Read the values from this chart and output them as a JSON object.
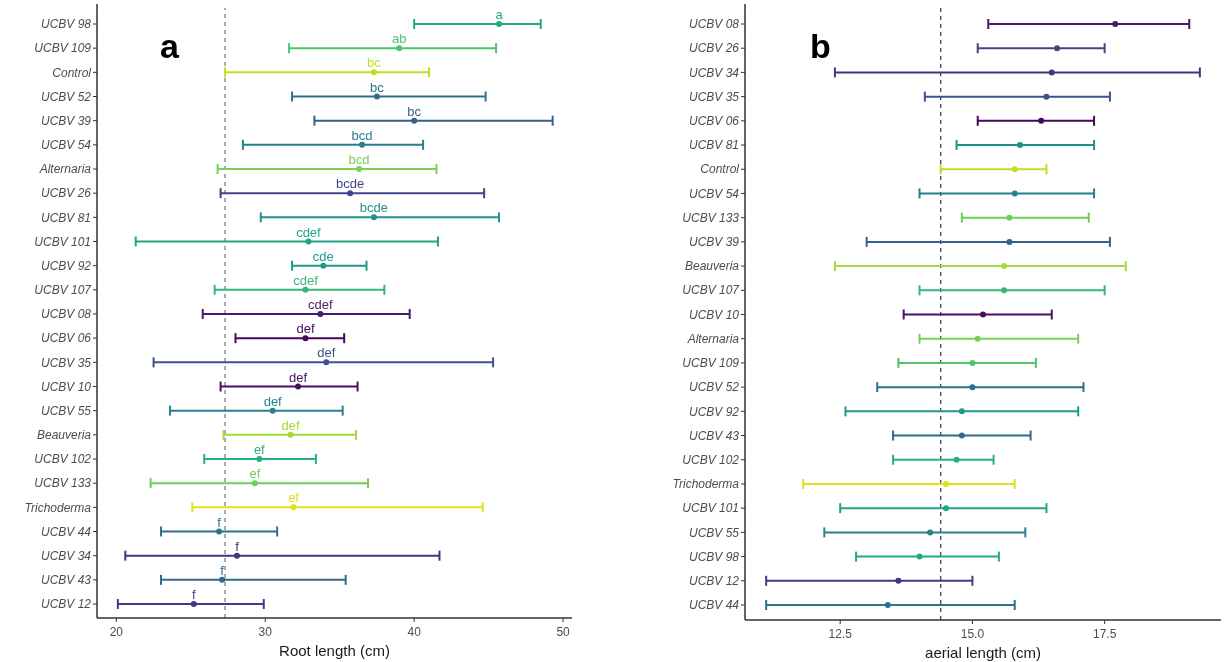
{
  "chart_data": [
    {
      "type": "scatter",
      "orientation": "horizontal",
      "marker": "circle",
      "xlabel": "Root length (cm)",
      "annotations": [
        "a"
      ],
      "categories": [
        "UCBV 98",
        "UCBV 109",
        "Control",
        "UCBV 52",
        "UCBV 39",
        "UCBV 54",
        "Alternaria",
        "UCBV 26",
        "UCBV 81",
        "UCBV 101",
        "UCBV 92",
        "UCBV 107",
        "UCBV 08",
        "UCBV 06",
        "UCBV 35",
        "UCBV 10",
        "UCBV 55",
        "Beauveria",
        "UCBV 102",
        "UCBV 133",
        "Trichoderma",
        "UCBV 44",
        "UCBV 34",
        "UCBV 43",
        "UCBV 12"
      ],
      "values": [
        45.7,
        39.0,
        37.3,
        37.5,
        40.0,
        36.5,
        36.3,
        35.7,
        37.3,
        32.9,
        33.9,
        32.7,
        33.7,
        32.7,
        34.1,
        32.2,
        30.5,
        31.7,
        29.6,
        29.3,
        31.9,
        26.9,
        28.1,
        27.1,
        25.2
      ],
      "errors": [
        [
          40.0,
          48.5
        ],
        [
          31.6,
          45.5
        ],
        [
          27.3,
          41.0
        ],
        [
          31.8,
          44.8
        ],
        [
          33.3,
          49.3
        ],
        [
          28.5,
          40.6
        ],
        [
          26.8,
          41.5
        ],
        [
          27.0,
          44.7
        ],
        [
          29.7,
          45.7
        ],
        [
          21.3,
          41.6
        ],
        [
          31.8,
          36.8
        ],
        [
          26.6,
          38.0
        ],
        [
          25.8,
          39.7
        ],
        [
          28.0,
          35.3
        ],
        [
          22.5,
          45.3
        ],
        [
          27.0,
          36.2
        ],
        [
          23.6,
          35.2
        ],
        [
          27.2,
          36.1
        ],
        [
          25.9,
          33.4
        ],
        [
          22.3,
          36.9
        ],
        [
          25.1,
          44.6
        ],
        [
          23.0,
          30.8
        ],
        [
          20.6,
          41.7
        ],
        [
          23.0,
          35.4
        ],
        [
          20.1,
          29.9
        ]
      ],
      "value_labels": [
        "a",
        "ab",
        "bc",
        "bc",
        "bc",
        "bcd",
        "bcd",
        "bcde",
        "bcde",
        "cdef",
        "cde",
        "cdef",
        "cdef",
        "def",
        "def",
        "def",
        "def",
        "def",
        "ef",
        "ef",
        "ef",
        "f",
        "f",
        "f",
        "f"
      ],
      "colors": [
        "#22a884",
        "#4ec36b",
        "#bddf26",
        "#2d708e",
        "#355f8d",
        "#287d8e",
        "#7ad151",
        "#414487",
        "#21918c",
        "#20a486",
        "#1f9a8a",
        "#35b779",
        "#481a6c",
        "#46085c",
        "#3b528b",
        "#471063",
        "#26828e",
        "#a5db36",
        "#2ab07f",
        "#6ece58",
        "#dde318",
        "#2c728e",
        "#46337e",
        "#31688e",
        "#443a83"
      ],
      "xlim": [
        18.7,
        50.6
      ],
      "xticks": [
        20,
        30,
        40,
        50
      ],
      "ref_lines": [
        {
          "axis": "x",
          "value": 27.3,
          "line_style": "dashed",
          "color": "#808080"
        }
      ]
    },
    {
      "type": "scatter",
      "orientation": "horizontal",
      "marker": "circle",
      "xlabel": "aerial length (cm)",
      "annotations": [
        "b"
      ],
      "categories": [
        "UCBV 08",
        "UCBV 26",
        "UCBV 34",
        "UCBV 35",
        "UCBV 06",
        "UCBV 81",
        "Control",
        "UCBV 54",
        "UCBV 133",
        "UCBV 39",
        "Beauveria",
        "UCBV 107",
        "UCBV 10",
        "Alternaria",
        "UCBV 109",
        "UCBV 52",
        "UCBV 92",
        "UCBV 43",
        "UCBV 102",
        "Trichoderma",
        "UCBV 101",
        "UCBV 55",
        "UCBV 98",
        "UCBV 12",
        "UCBV 44"
      ],
      "values": [
        17.7,
        16.6,
        16.5,
        16.4,
        16.3,
        15.9,
        15.8,
        15.8,
        15.7,
        15.7,
        15.6,
        15.6,
        15.2,
        15.1,
        15.0,
        15.0,
        14.8,
        14.8,
        14.7,
        14.5,
        14.5,
        14.2,
        14.0,
        13.6,
        13.4
      ],
      "errors": [
        [
          15.3,
          19.1
        ],
        [
          15.1,
          17.5
        ],
        [
          12.4,
          19.3
        ],
        [
          14.1,
          17.6
        ],
        [
          15.1,
          17.3
        ],
        [
          14.7,
          17.3
        ],
        [
          14.4,
          16.4
        ],
        [
          14.0,
          17.3
        ],
        [
          14.8,
          17.2
        ],
        [
          13.0,
          17.6
        ],
        [
          12.4,
          17.9
        ],
        [
          14.0,
          17.5
        ],
        [
          13.7,
          16.5
        ],
        [
          14.0,
          17.0
        ],
        [
          13.6,
          16.2
        ],
        [
          13.2,
          17.1
        ],
        [
          12.6,
          17.0
        ],
        [
          13.5,
          16.1
        ],
        [
          13.5,
          15.4
        ],
        [
          11.8,
          15.8
        ],
        [
          12.5,
          16.4
        ],
        [
          12.2,
          16.0
        ],
        [
          12.8,
          15.5
        ],
        [
          11.1,
          15.0
        ],
        [
          11.1,
          15.8
        ]
      ],
      "colors": [
        "#481a6c",
        "#414487",
        "#46337e",
        "#3b528b",
        "#46085c",
        "#21918c",
        "#bddf26",
        "#287d8e",
        "#6ece58",
        "#355f8d",
        "#a5db36",
        "#35b779",
        "#471063",
        "#7ad151",
        "#4ec36b",
        "#2d708e",
        "#1f9a8a",
        "#31688e",
        "#2ab07f",
        "#dde318",
        "#20a486",
        "#26828e",
        "#22a884",
        "#443a83",
        "#2c728e"
      ],
      "xlim": [
        10.7,
        19.7
      ],
      "xticks": [
        12.5,
        {
          "value": 15,
          "label": "15.0"
        },
        17.5
      ],
      "ref_lines": [
        {
          "axis": "x",
          "value": 14.4,
          "line_style": "dashed",
          "color": "#404060"
        }
      ]
    }
  ]
}
